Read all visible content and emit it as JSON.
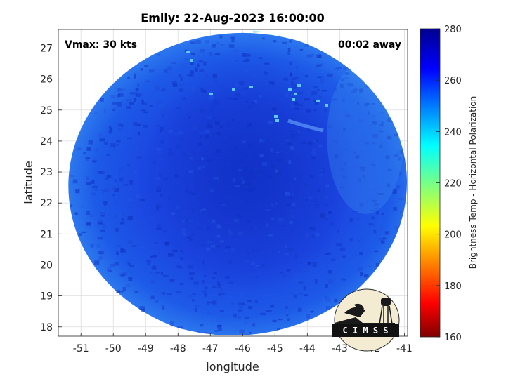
{
  "chart_data": {
    "type": "heatmap",
    "title": "Emily: 22-Aug-2023 16:00:00",
    "annotations": {
      "left": "Vmax: 30 kts",
      "right": "00:02 away"
    },
    "xlabel": "longitude",
    "ylabel": "latitude",
    "xlim": [
      -51.7,
      -40.9
    ],
    "ylim": [
      17.7,
      27.6
    ],
    "xticks": [
      -51,
      -50,
      -49,
      -48,
      -47,
      -46,
      -45,
      -44,
      -43,
      -42,
      -41
    ],
    "yticks": [
      18,
      19,
      20,
      21,
      22,
      23,
      24,
      25,
      26,
      27
    ],
    "grid": true,
    "colorbar": {
      "label": "Brightness Temp - Horizontal Polarization",
      "range": [
        160,
        280
      ],
      "ticks": [
        160,
        180,
        200,
        220,
        240,
        260,
        280
      ],
      "colormap": "jet"
    },
    "field": {
      "center_lon": -46.0,
      "center_lat": 22.55,
      "background_value": 262,
      "inner_low_value": 270,
      "edge_value": 252,
      "hot_spots_value": 240
    }
  },
  "logo": {
    "text": "C I M S S"
  },
  "colors": {
    "plot_background": "#ffffff",
    "grid": "#dddddd",
    "axes": "#262626"
  }
}
